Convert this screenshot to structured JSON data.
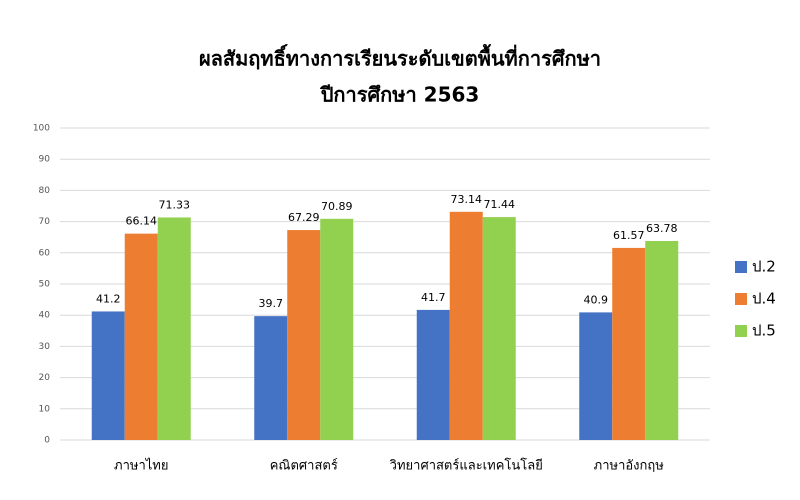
{
  "chart_data": {
    "type": "bar",
    "title": "ผลสัมฤทธิ์ทางการเรียนระดับเขตพื้นที่การศึกษา",
    "subtitle": "ปีการศึกษา 2563",
    "categories": [
      "ภาษาไทย",
      "คณิตศาสตร์",
      "วิทยาศาสตร์และเทคโนโลยี",
      "ภาษาอังกฤษ"
    ],
    "series": [
      {
        "name": "ป.2",
        "color": "#4472c4",
        "values": [
          41.2,
          39.7,
          41.7,
          40.9
        ]
      },
      {
        "name": "ป.4",
        "color": "#ed7d31",
        "values": [
          66.14,
          67.29,
          73.14,
          61.57
        ]
      },
      {
        "name": "ป.5",
        "color": "#92d050",
        "values": [
          71.33,
          70.89,
          71.44,
          63.78
        ]
      }
    ],
    "ylim": [
      0,
      100
    ],
    "yticks": [
      0,
      10,
      20,
      30,
      40,
      50,
      60,
      70,
      80,
      90,
      100
    ],
    "grid": true,
    "legend": "right"
  }
}
